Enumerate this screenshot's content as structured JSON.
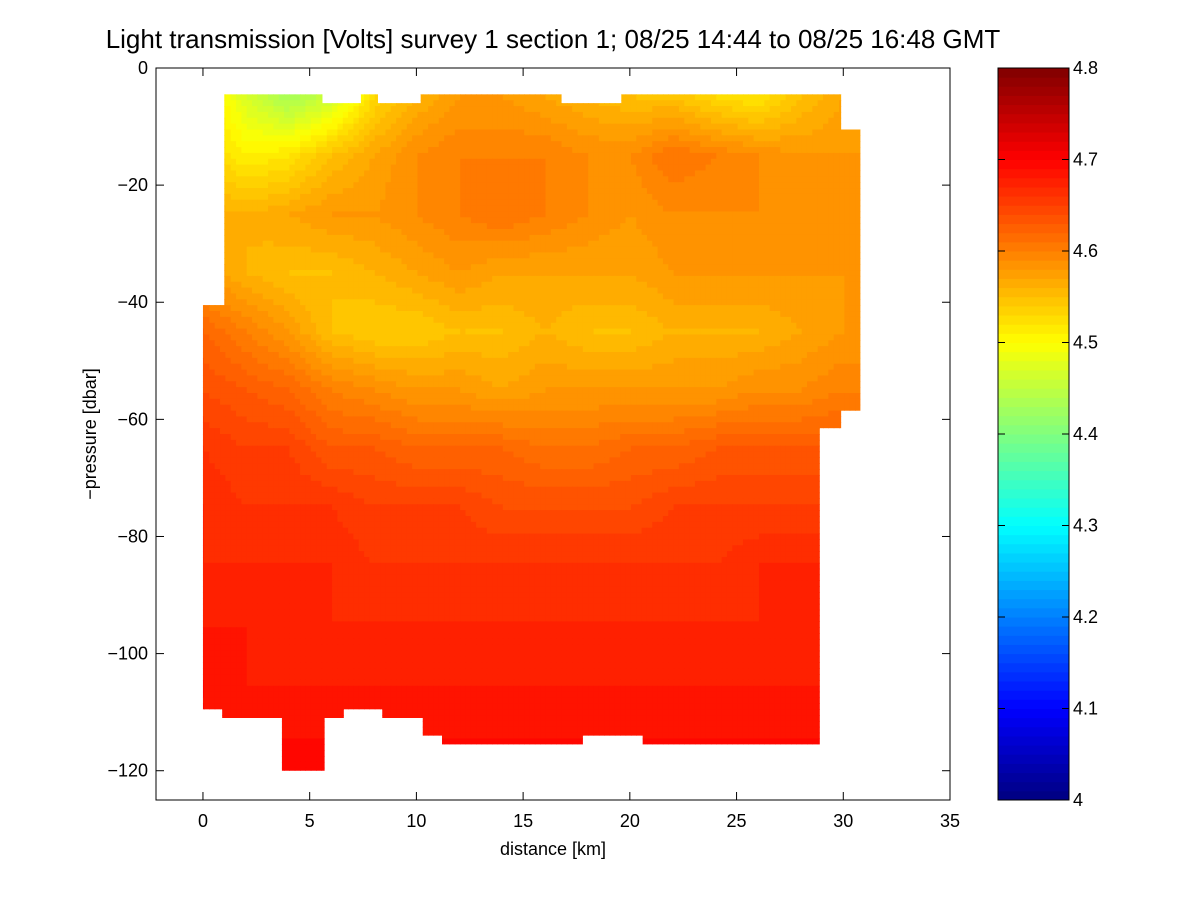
{
  "chart_data": {
    "type": "heatmap",
    "title": "Light transmission [Volts] survey 1 section 1; 08/25 14:44 to 08/25 16:48 GMT",
    "xlabel": "distance [km]",
    "ylabel": "−pressure [dbar]",
    "xlim": [
      -2.2,
      35
    ],
    "ylim": [
      -125,
      0
    ],
    "x_ticks": [
      0,
      5,
      10,
      15,
      20,
      25,
      30,
      35
    ],
    "x_tick_labels": [
      "0",
      "5",
      "10",
      "15",
      "20",
      "25",
      "30",
      "35"
    ],
    "y_ticks": [
      0,
      -20,
      -40,
      -60,
      -80,
      -100,
      -120
    ],
    "y_tick_labels": [
      "0",
      "−20",
      "−40",
      "−60",
      "−80",
      "−100",
      "−120"
    ],
    "colorbar": {
      "colormap": "jet",
      "range": [
        4,
        4.8
      ],
      "ticks": [
        4,
        4.1,
        4.2,
        4.3,
        4.4,
        4.5,
        4.6,
        4.7,
        4.8
      ],
      "tick_labels": [
        "4",
        "4.1",
        "4.2",
        "4.3",
        "4.4",
        "4.5",
        "4.6",
        "4.7",
        "4.8"
      ],
      "levels": 80
    },
    "grid": false,
    "field": {
      "x": [
        0,
        2,
        4,
        6,
        8,
        10,
        12,
        14,
        16,
        18,
        20,
        22,
        24,
        26,
        28,
        30
      ],
      "y": [
        -5,
        -15,
        -25,
        -35,
        -45,
        -55,
        -65,
        -75,
        -85,
        -95,
        -105,
        -115
      ],
      "values": [
        [
          4.53,
          4.47,
          4.43,
          4.46,
          4.53,
          4.56,
          4.58,
          4.58,
          4.57,
          4.56,
          4.55,
          4.55,
          4.53,
          4.52,
          4.55,
          4.57
        ],
        [
          4.54,
          4.51,
          4.52,
          4.55,
          4.57,
          4.59,
          4.6,
          4.6,
          4.6,
          4.59,
          4.59,
          4.61,
          4.6,
          4.59,
          4.58,
          4.58
        ],
        [
          4.57,
          4.56,
          4.57,
          4.58,
          4.58,
          4.59,
          4.6,
          4.61,
          4.6,
          4.59,
          4.58,
          4.59,
          4.59,
          4.59,
          4.59,
          4.59
        ],
        [
          4.58,
          4.56,
          4.55,
          4.55,
          4.56,
          4.57,
          4.58,
          4.57,
          4.57,
          4.57,
          4.57,
          4.58,
          4.58,
          4.58,
          4.58,
          4.58
        ],
        [
          4.62,
          4.6,
          4.58,
          4.55,
          4.54,
          4.54,
          4.55,
          4.55,
          4.56,
          4.55,
          4.55,
          4.56,
          4.56,
          4.56,
          4.57,
          4.58
        ],
        [
          4.64,
          4.63,
          4.62,
          4.6,
          4.59,
          4.58,
          4.58,
          4.57,
          4.58,
          4.58,
          4.58,
          4.58,
          4.58,
          4.59,
          4.59,
          4.6
        ],
        [
          4.66,
          4.65,
          4.65,
          4.63,
          4.63,
          4.62,
          4.62,
          4.62,
          4.61,
          4.61,
          4.62,
          4.62,
          4.63,
          4.63,
          4.63,
          4.63
        ],
        [
          4.67,
          4.66,
          4.66,
          4.66,
          4.65,
          4.65,
          4.65,
          4.64,
          4.64,
          4.64,
          4.64,
          4.65,
          4.65,
          4.65,
          4.65,
          4.65
        ],
        [
          4.67,
          4.67,
          4.67,
          4.67,
          4.66,
          4.66,
          4.66,
          4.66,
          4.66,
          4.66,
          4.66,
          4.66,
          4.66,
          4.67,
          4.67,
          4.67
        ],
        [
          4.68,
          4.68,
          4.68,
          4.67,
          4.67,
          4.67,
          4.67,
          4.67,
          4.67,
          4.67,
          4.67,
          4.67,
          4.67,
          4.67,
          4.67,
          4.67
        ],
        [
          4.69,
          4.68,
          4.68,
          4.68,
          4.68,
          4.68,
          4.68,
          4.68,
          4.68,
          4.68,
          4.68,
          4.68,
          4.68,
          4.68,
          4.68,
          4.68
        ],
        [
          4.69,
          4.69,
          4.69,
          4.69,
          4.69,
          4.69,
          4.69,
          4.69,
          4.69,
          4.69,
          4.69,
          4.69,
          4.69,
          4.69,
          4.69,
          4.69
        ]
      ]
    },
    "data_coverage_outline": [
      [
        1.0,
        -4.5
      ],
      [
        5.6,
        -4.5
      ],
      [
        5.6,
        -6
      ],
      [
        7.4,
        -6
      ],
      [
        7.4,
        -4.5
      ],
      [
        8.2,
        -4.5
      ],
      [
        8.2,
        -6
      ],
      [
        10.2,
        -6
      ],
      [
        10.2,
        -4.5
      ],
      [
        16.8,
        -4.5
      ],
      [
        16.8,
        -6
      ],
      [
        19.6,
        -6
      ],
      [
        19.6,
        -4.5
      ],
      [
        29.9,
        -4.5
      ],
      [
        29.9,
        -10.5
      ],
      [
        30.8,
        -10.5
      ],
      [
        30.8,
        -58.5
      ],
      [
        29.9,
        -58.5
      ],
      [
        29.9,
        -61.5
      ],
      [
        28.9,
        -61.5
      ],
      [
        28.9,
        -115.5
      ],
      [
        20.6,
        -115.5
      ],
      [
        20.6,
        -114
      ],
      [
        18.4,
        -114
      ],
      [
        17.8,
        -114
      ],
      [
        17.8,
        -115.5
      ],
      [
        11.2,
        -115.5
      ],
      [
        11.2,
        -114
      ],
      [
        10.3,
        -114
      ],
      [
        10.3,
        -111
      ],
      [
        8.4,
        -111
      ],
      [
        8.4,
        -109.5
      ],
      [
        6.6,
        -109.5
      ],
      [
        6.6,
        -111
      ],
      [
        5.7,
        -111
      ],
      [
        5.7,
        -120
      ],
      [
        3.7,
        -120
      ],
      [
        3.7,
        -111
      ],
      [
        0.9,
        -111
      ],
      [
        0.9,
        -109.5
      ],
      [
        0,
        -109.5
      ],
      [
        0,
        -40.5
      ],
      [
        1.0,
        -40.5
      ]
    ]
  }
}
